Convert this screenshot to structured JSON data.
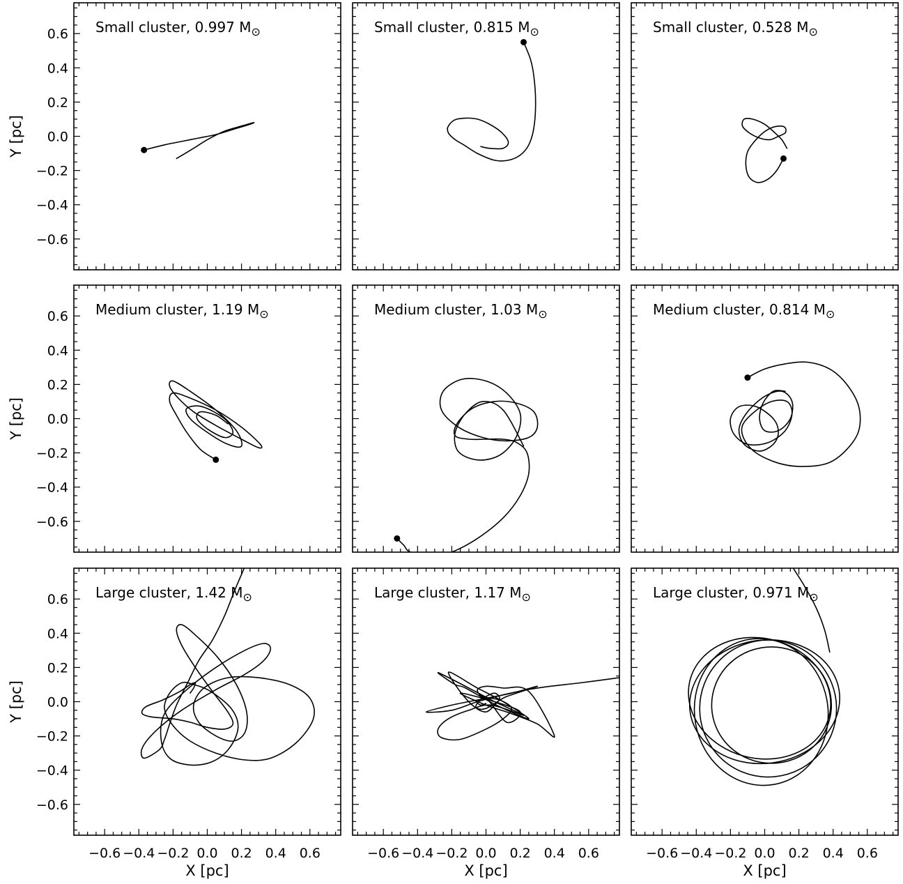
{
  "figure": {
    "xlabel": "X [pc]",
    "ylabel": "Y [pc]",
    "mass_unit": "M",
    "sun_symbol": "⊙"
  },
  "chart_data": [
    {
      "type": "line",
      "title": "Small cluster, 0.997 M⊙",
      "cluster": "Small cluster",
      "mass": "0.997",
      "xlim": [
        -0.78,
        0.78
      ],
      "ylim": [
        -0.78,
        0.78
      ],
      "grid": false,
      "x_ticks": [
        -0.6,
        -0.4,
        -0.2,
        0.0,
        0.2,
        0.4,
        0.6
      ],
      "y_ticks": [
        -0.6,
        -0.4,
        -0.2,
        0.0,
        0.2,
        0.4,
        0.6
      ],
      "series": [
        {
          "x": [
            -0.37,
            -0.25,
            -0.15,
            -0.05,
            0.05,
            0.15,
            0.25,
            0.27,
            0.2,
            0.1,
            0.0,
            -0.08,
            -0.18
          ],
          "y": [
            -0.08,
            -0.05,
            -0.03,
            -0.01,
            0.01,
            0.04,
            0.07,
            0.08,
            0.06,
            0.03,
            -0.02,
            -0.07,
            -0.13
          ]
        }
      ],
      "markers": [
        {
          "x": -0.37,
          "y": -0.08
        }
      ]
    },
    {
      "type": "line",
      "title": "Small cluster, 0.815 M⊙",
      "cluster": "Small cluster",
      "mass": "0.815",
      "xlim": [
        -0.78,
        0.78
      ],
      "ylim": [
        -0.78,
        0.78
      ],
      "grid": false,
      "x_ticks": [
        -0.6,
        -0.4,
        -0.2,
        0.0,
        0.2,
        0.4,
        0.6
      ],
      "y_ticks": [
        -0.6,
        -0.4,
        -0.2,
        0.0,
        0.2,
        0.4,
        0.6
      ],
      "series": [
        {
          "x": [
            0.22,
            0.26,
            0.28,
            0.29,
            0.28,
            0.25,
            0.2,
            0.13,
            0.05,
            -0.05,
            -0.13,
            -0.18,
            -0.22,
            -0.22,
            -0.17,
            -0.05,
            0.07,
            0.13,
            0.1,
            0.02,
            -0.03
          ],
          "y": [
            0.55,
            0.45,
            0.35,
            0.2,
            0.05,
            -0.05,
            -0.11,
            -0.14,
            -0.14,
            -0.1,
            -0.05,
            -0.02,
            0.02,
            0.06,
            0.1,
            0.1,
            0.04,
            -0.03,
            -0.07,
            -0.07,
            -0.06
          ]
        }
      ],
      "markers": [
        {
          "x": 0.22,
          "y": 0.55
        }
      ]
    },
    {
      "type": "line",
      "title": "Small cluster, 0.528 M⊙",
      "cluster": "Small cluster",
      "mass": "0.528",
      "xlim": [
        -0.78,
        0.78
      ],
      "ylim": [
        -0.78,
        0.78
      ],
      "grid": false,
      "x_ticks": [
        -0.6,
        -0.4,
        -0.2,
        0.0,
        0.2,
        0.4,
        0.6
      ],
      "y_ticks": [
        -0.6,
        -0.4,
        -0.2,
        0.0,
        0.2,
        0.4,
        0.6
      ],
      "series": [
        {
          "x": [
            0.11,
            0.07,
            0.02,
            -0.04,
            -0.09,
            -0.11,
            -0.1,
            -0.06,
            -0.01,
            0.04,
            0.09,
            0.12,
            0.12,
            0.08,
            0.03,
            -0.03,
            -0.09,
            -0.13,
            -0.12,
            -0.07,
            0.0,
            0.06,
            0.1,
            0.13
          ],
          "y": [
            -0.13,
            -0.2,
            -0.25,
            -0.27,
            -0.24,
            -0.17,
            -0.09,
            -0.03,
            0.02,
            0.05,
            0.06,
            0.05,
            0.02,
            0.0,
            -0.02,
            -0.01,
            0.02,
            0.06,
            0.1,
            0.1,
            0.07,
            0.02,
            -0.02,
            -0.07
          ]
        }
      ],
      "markers": [
        {
          "x": 0.11,
          "y": -0.13
        }
      ]
    },
    {
      "type": "line",
      "title": "Medium cluster, 1.19 M⊙",
      "cluster": "Medium cluster",
      "mass": "1.19",
      "xlim": [
        -0.78,
        0.78
      ],
      "ylim": [
        -0.78,
        0.78
      ],
      "grid": false,
      "x_ticks": [
        -0.6,
        -0.4,
        -0.2,
        0.0,
        0.2,
        0.4,
        0.6
      ],
      "y_ticks": [
        -0.6,
        -0.4,
        -0.2,
        0.0,
        0.2,
        0.4,
        0.6
      ],
      "series": [
        {
          "x": [
            0.05,
            -0.04,
            -0.12,
            -0.18,
            -0.22,
            -0.2,
            -0.1,
            0.05,
            0.2,
            0.31,
            0.3,
            0.2,
            0.05,
            -0.08,
            -0.17,
            -0.22,
            -0.2,
            -0.1,
            0.05,
            0.17,
            0.2,
            0.12,
            0.0,
            -0.1,
            -0.12,
            -0.03,
            0.1,
            0.15,
            0.1,
            0.0,
            -0.06,
            -0.04,
            0.05,
            0.12
          ],
          "y": [
            -0.24,
            -0.18,
            -0.08,
            0.02,
            0.1,
            0.15,
            0.12,
            0.05,
            -0.05,
            -0.15,
            -0.17,
            -0.12,
            -0.04,
            0.04,
            0.12,
            0.19,
            0.22,
            0.16,
            0.05,
            -0.07,
            -0.16,
            -0.15,
            -0.08,
            0.0,
            0.06,
            0.07,
            0.0,
            -0.08,
            -0.11,
            -0.06,
            0.0,
            0.04,
            0.02,
            -0.03
          ]
        }
      ],
      "markers": [
        {
          "x": 0.05,
          "y": -0.24
        }
      ]
    },
    {
      "type": "line",
      "title": "Medium cluster, 1.03 M⊙",
      "cluster": "Medium cluster",
      "mass": "1.03",
      "xlim": [
        -0.78,
        0.78
      ],
      "ylim": [
        -0.78,
        0.78
      ],
      "grid": false,
      "x_ticks": [
        -0.6,
        -0.4,
        -0.2,
        0.0,
        0.2,
        0.4,
        0.6
      ],
      "y_ticks": [
        -0.6,
        -0.4,
        -0.2,
        0.0,
        0.2,
        0.4,
        0.6
      ],
      "series": [
        {
          "x": [
            -0.52,
            -0.48,
            -0.44,
            -0.3,
            -0.2,
            -0.05,
            0.1,
            0.2,
            0.25,
            0.24,
            0.18,
            0.1,
            0.0,
            -0.1,
            -0.18,
            -0.17,
            -0.08,
            0.05,
            0.18,
            0.28,
            0.3,
            0.25,
            0.12,
            -0.02,
            -0.16,
            -0.26,
            -0.25,
            -0.14,
            0.0,
            0.12,
            0.2,
            0.18,
            0.1,
            0.0,
            -0.1,
            -0.17,
            -0.18,
            -0.12,
            -0.02,
            0.1,
            0.22
          ],
          "y": [
            -0.7,
            -0.74,
            -0.78,
            -0.8,
            -0.78,
            -0.7,
            -0.58,
            -0.45,
            -0.32,
            -0.2,
            -0.14,
            -0.12,
            -0.12,
            -0.12,
            -0.1,
            -0.03,
            0.06,
            0.1,
            0.09,
            0.04,
            -0.05,
            -0.11,
            -0.13,
            -0.11,
            -0.05,
            0.05,
            0.16,
            0.23,
            0.22,
            0.15,
            0.03,
            -0.1,
            -0.2,
            -0.24,
            -0.23,
            -0.18,
            -0.08,
            0.03,
            0.1,
            0.05,
            -0.16
          ]
        }
      ],
      "markers": [
        {
          "x": -0.52,
          "y": -0.7
        }
      ]
    },
    {
      "type": "line",
      "title": "Medium cluster, 0.814 M⊙",
      "cluster": "Medium cluster",
      "mass": "0.814",
      "xlim": [
        -0.78,
        0.78
      ],
      "ylim": [
        -0.78,
        0.78
      ],
      "grid": false,
      "x_ticks": [
        -0.6,
        -0.4,
        -0.2,
        0.0,
        0.2,
        0.4,
        0.6
      ],
      "y_ticks": [
        -0.6,
        -0.4,
        -0.2,
        0.0,
        0.2,
        0.4,
        0.6
      ],
      "series": [
        {
          "x": [
            -0.1,
            0.0,
            0.12,
            0.25,
            0.38,
            0.48,
            0.55,
            0.55,
            0.48,
            0.37,
            0.22,
            0.08,
            -0.05,
            -0.12,
            -0.13,
            -0.06,
            0.04,
            0.13,
            0.16,
            0.12,
            0.02,
            -0.1,
            -0.18,
            -0.2,
            -0.15,
            -0.05,
            0.05,
            0.08,
            0.05,
            -0.03,
            -0.12,
            -0.15,
            -0.1,
            0.0,
            0.1,
            0.16,
            0.15,
            0.08,
            0.0,
            -0.03,
            -0.01,
            0.05,
            0.12
          ],
          "y": [
            0.24,
            0.29,
            0.32,
            0.33,
            0.29,
            0.2,
            0.07,
            -0.07,
            -0.18,
            -0.26,
            -0.28,
            -0.26,
            -0.2,
            -0.12,
            -0.04,
            0.04,
            0.1,
            0.1,
            0.03,
            -0.07,
            -0.14,
            -0.15,
            -0.09,
            0.0,
            0.07,
            0.07,
            0.0,
            -0.08,
            -0.15,
            -0.19,
            -0.15,
            -0.06,
            0.04,
            0.13,
            0.16,
            0.1,
            0.0,
            -0.07,
            -0.07,
            0.0,
            0.09,
            0.16,
            0.16
          ]
        }
      ],
      "markers": [
        {
          "x": -0.1,
          "y": 0.24
        }
      ]
    },
    {
      "type": "line",
      "title": "Large cluster, 1.42 M⊙",
      "cluster": "Large cluster",
      "mass": "1.42",
      "xlim": [
        -0.78,
        0.78
      ],
      "ylim": [
        -0.78,
        0.78
      ],
      "grid": false,
      "x_ticks": [
        -0.6,
        -0.4,
        -0.2,
        0.0,
        0.2,
        0.4,
        0.6
      ],
      "y_ticks": [
        -0.6,
        -0.4,
        -0.2,
        0.0,
        0.2,
        0.4,
        0.6
      ],
      "series": [
        {
          "x": [
            0.22,
            0.16,
            0.1,
            0.03,
            -0.05,
            -0.12,
            -0.18,
            -0.22,
            -0.25,
            -0.28,
            -0.37,
            -0.38,
            -0.3,
            -0.15,
            0.05,
            0.22,
            0.33,
            0.37,
            0.33,
            0.22,
            0.05,
            -0.12,
            -0.25,
            -0.27,
            -0.22,
            -0.1,
            0.03,
            0.13,
            0.18,
            0.14,
            0.02,
            -0.08,
            -0.15,
            -0.22,
            -0.25,
            -0.2,
            -0.1,
            0.05,
            0.22,
            0.37,
            0.52,
            0.62,
            0.6,
            0.48,
            0.3,
            0.12,
            -0.02,
            -0.08,
            -0.05,
            0.05,
            0.15,
            0.22,
            0.23,
            0.17,
            0.06,
            -0.07,
            -0.15,
            -0.18,
            -0.15,
            -0.07,
            0.03,
            0.12,
            0.15,
            0.1,
            0.0,
            -0.1,
            -0.2,
            -0.32,
            -0.38,
            -0.36,
            -0.26,
            -0.16,
            -0.1,
            -0.07,
            -0.08,
            -0.1
          ],
          "y": [
            0.79,
            0.65,
            0.5,
            0.36,
            0.24,
            0.1,
            -0.02,
            -0.13,
            -0.22,
            -0.28,
            -0.33,
            -0.27,
            -0.17,
            -0.05,
            0.07,
            0.16,
            0.24,
            0.31,
            0.34,
            0.3,
            0.2,
            0.07,
            -0.07,
            -0.22,
            -0.33,
            -0.37,
            -0.35,
            -0.27,
            -0.15,
            -0.04,
            0.06,
            0.1,
            0.11,
            0.05,
            -0.04,
            -0.14,
            -0.23,
            -0.3,
            -0.34,
            -0.33,
            -0.24,
            -0.1,
            0.02,
            0.1,
            0.14,
            0.14,
            0.08,
            -0.02,
            -0.12,
            -0.2,
            -0.23,
            -0.18,
            -0.06,
            0.1,
            0.26,
            0.39,
            0.45,
            0.42,
            0.33,
            0.2,
            0.06,
            -0.06,
            -0.13,
            -0.16,
            -0.15,
            -0.12,
            -0.1,
            -0.09,
            -0.07,
            -0.03,
            0.01,
            0.06,
            0.1,
            0.11,
            0.08,
            0.05
          ]
        }
      ],
      "markers": []
    },
    {
      "type": "line",
      "title": "Large cluster, 1.17 M⊙",
      "cluster": "Large cluster",
      "mass": "1.17",
      "xlim": [
        -0.78,
        0.78
      ],
      "ylim": [
        -0.78,
        0.78
      ],
      "grid": false,
      "x_ticks": [
        -0.6,
        -0.4,
        -0.2,
        0.0,
        0.2,
        0.4,
        0.6
      ],
      "y_ticks": [
        -0.6,
        -0.4,
        -0.2,
        0.0,
        0.2,
        0.4,
        0.6
      ],
      "series": [
        {
          "x": [
            0.78,
            0.55,
            0.3,
            0.1,
            -0.05,
            -0.2,
            -0.35,
            -0.2,
            0.0,
            0.15,
            0.3,
            0.12,
            -0.05,
            -0.22,
            -0.05,
            0.1,
            0.25,
            0.06,
            -0.12,
            -0.18,
            -0.28,
            -0.1,
            0.05,
            0.22,
            0.03,
            -0.1,
            -0.22,
            -0.28,
            -0.26,
            -0.15,
            0.0,
            0.1,
            0.15,
            0.08,
            -0.02,
            -0.05,
            0.0,
            0.1,
            0.25,
            0.4,
            0.3,
            0.15,
            0.0,
            -0.15,
            0.05,
            0.2,
            0.12,
            0.0,
            -0.06,
            0.0,
            0.05,
            0.08,
            0.05,
            0.0,
            -0.05,
            -0.03,
            0.0
          ],
          "y": [
            0.14,
            0.11,
            0.08,
            0.04,
            0.0,
            -0.05,
            -0.06,
            -0.02,
            0.02,
            0.05,
            0.09,
            0.03,
            -0.04,
            0.17,
            0.08,
            0.0,
            -0.1,
            -0.02,
            0.08,
            0.1,
            0.17,
            0.08,
            0.0,
            -0.08,
            -0.02,
            -0.05,
            -0.1,
            -0.16,
            -0.21,
            -0.22,
            -0.16,
            -0.1,
            -0.04,
            0.01,
            0.03,
            0.07,
            0.09,
            0.08,
            0.06,
            -0.2,
            -0.13,
            -0.07,
            -0.02,
            0.05,
            0.0,
            -0.06,
            -0.12,
            0.02,
            -0.03,
            -0.06,
            -0.02,
            0.02,
            0.05,
            0.03,
            0.0,
            -0.02,
            -0.01
          ]
        }
      ],
      "markers": []
    },
    {
      "type": "line",
      "title": "Large cluster, 0.971 M⊙",
      "cluster": "Large cluster",
      "mass": "0.971",
      "xlim": [
        -0.78,
        0.78
      ],
      "ylim": [
        -0.78,
        0.78
      ],
      "grid": false,
      "x_ticks": [
        -0.6,
        -0.4,
        -0.2,
        0.0,
        0.2,
        0.4,
        0.6
      ],
      "y_ticks": [
        -0.6,
        -0.4,
        -0.2,
        0.0,
        0.2,
        0.4,
        0.6
      ],
      "series": [
        {
          "x": [
            0.16,
            0.23,
            0.3,
            0.35,
            0.38
          ],
          "y": [
            0.79,
            0.68,
            0.55,
            0.42,
            0.29
          ]
        }
      ],
      "ellipses": [
        {
          "cx": 0.0,
          "cy": 0.0,
          "rx": 0.44,
          "ry": 0.36,
          "tilt": 8
        },
        {
          "cx": 0.02,
          "cy": -0.04,
          "rx": 0.4,
          "ry": 0.4,
          "tilt": 0
        },
        {
          "cx": -0.02,
          "cy": -0.06,
          "rx": 0.39,
          "ry": 0.43,
          "tilt": 10
        },
        {
          "cx": 0.04,
          "cy": -0.02,
          "rx": 0.35,
          "ry": 0.34,
          "tilt": 0
        },
        {
          "cx": -0.03,
          "cy": 0.02,
          "rx": 0.42,
          "ry": 0.35,
          "tilt": -15
        }
      ],
      "markers": []
    }
  ]
}
